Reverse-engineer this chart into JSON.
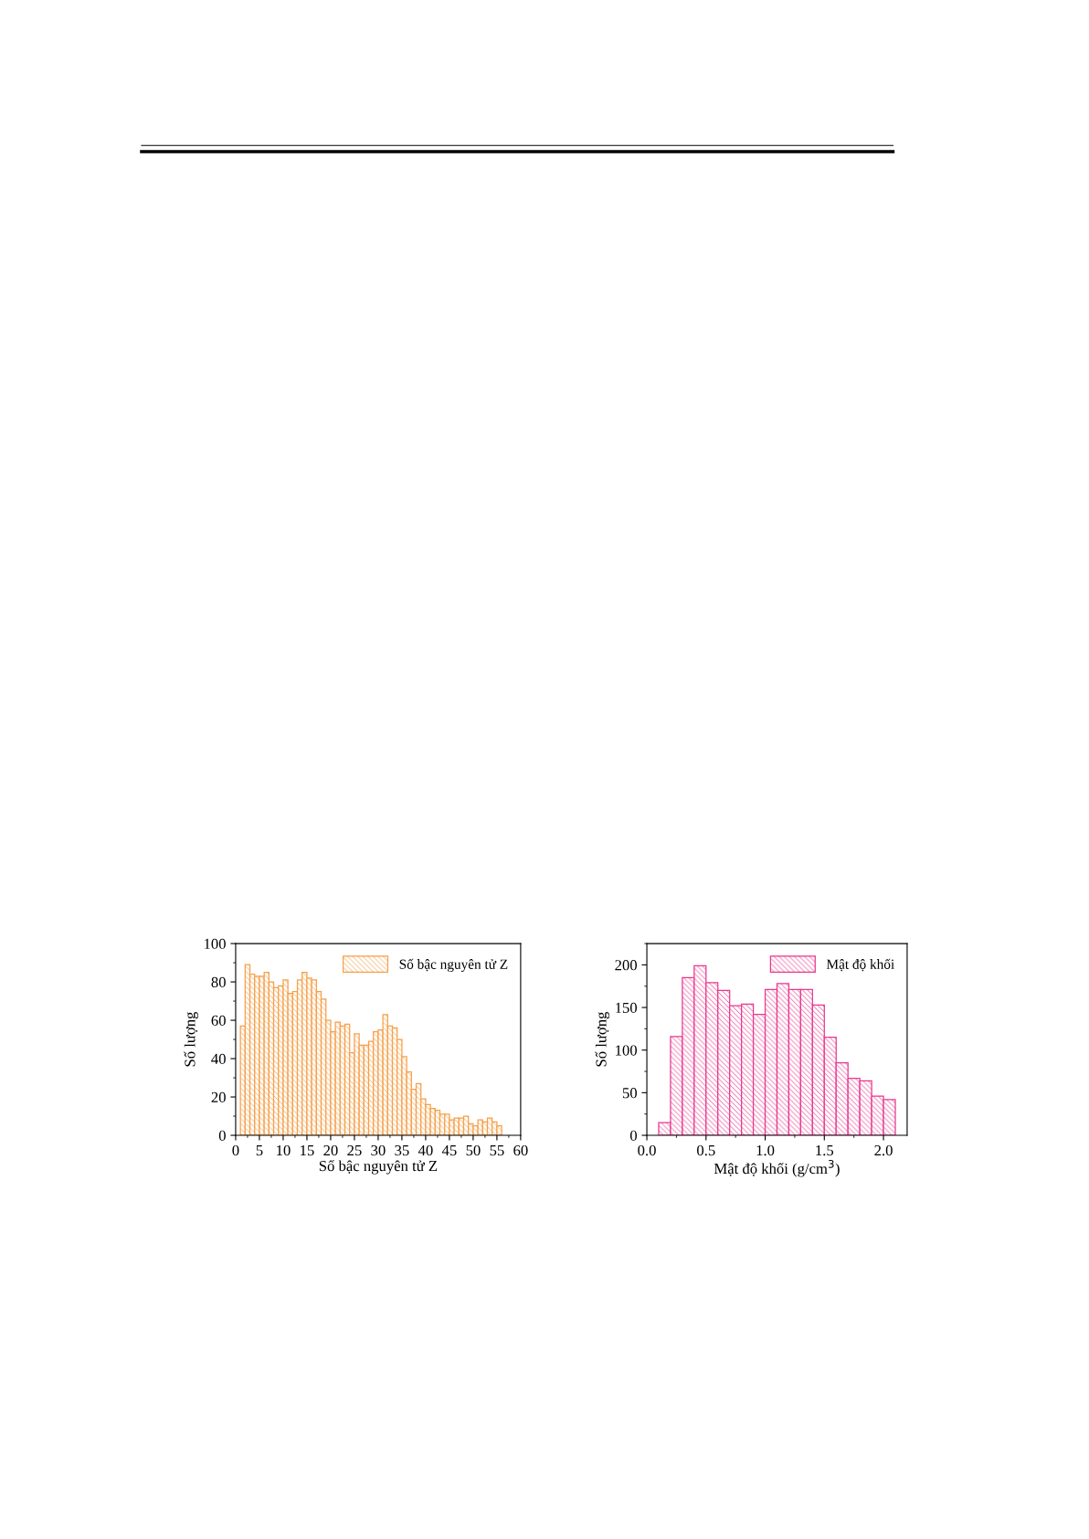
{
  "chart_data": [
    {
      "type": "histogram",
      "xlabel": "Số bậc nguyên tử Z",
      "ylabel": "Số lượng",
      "bins": [
        1,
        2,
        3,
        4,
        5,
        6,
        7,
        8,
        9,
        10,
        11,
        12,
        13,
        14,
        15,
        16,
        17,
        18,
        19,
        20,
        21,
        22,
        23,
        24,
        25,
        26,
        27,
        28,
        29,
        30,
        31,
        32,
        33,
        34,
        35,
        36,
        37,
        38,
        39,
        40,
        41,
        42,
        43,
        44,
        45,
        46,
        47,
        48,
        49,
        50,
        51,
        52,
        53,
        54,
        55,
        56
      ],
      "series": [
        {
          "name": "Số bậc nguyên tử Z",
          "color": "#f5a04a",
          "values": [
            57,
            89,
            84,
            83,
            83,
            85,
            80,
            77,
            78,
            81,
            74,
            75,
            81,
            85,
            82,
            81,
            75,
            71,
            60,
            54,
            59,
            57,
            58,
            43,
            53,
            47,
            47,
            49,
            54,
            55,
            63,
            57,
            56,
            50,
            41,
            33,
            24,
            27,
            19,
            16,
            14,
            13,
            11,
            11,
            8,
            9,
            9,
            10,
            6,
            5,
            8,
            7,
            9,
            7,
            5
          ]
        }
      ],
      "xlim": [
        0,
        60
      ],
      "xticks": [
        0,
        5,
        10,
        15,
        20,
        25,
        30,
        35,
        40,
        45,
        50,
        55,
        60
      ],
      "ylim": [
        0,
        100
      ],
      "yticks": [
        0,
        20,
        40,
        60,
        80,
        100
      ],
      "legend": "top right",
      "grid": false
    },
    {
      "type": "histogram",
      "xlabel": "Mật độ khối (g/cm$^{3}$)",
      "ylabel": "Số lượng",
      "bins": [
        0.1,
        0.2,
        0.3,
        0.4,
        0.5,
        0.6,
        0.7,
        0.8,
        0.9,
        1.0,
        1.1,
        1.2,
        1.3,
        1.4,
        1.5,
        1.6,
        1.7,
        1.8,
        1.9,
        2.0,
        2.1
      ],
      "series": [
        {
          "name": "Mật độ khối",
          "color": "#e8388f",
          "values": [
            15,
            116,
            185,
            199,
            179,
            170,
            152,
            154,
            142,
            171,
            178,
            171,
            171,
            153,
            115,
            85,
            67,
            64,
            46,
            42
          ]
        }
      ],
      "xlim": [
        0,
        2.2
      ],
      "xticks": [
        {
          "value": 0,
          "label": "0.0"
        },
        0.5,
        {
          "value": 1,
          "label": "1.0"
        },
        1.5,
        {
          "value": 2,
          "label": "2.0"
        }
      ],
      "ylim": [
        0,
        225
      ],
      "yticks": [
        0,
        50,
        100,
        150,
        200
      ],
      "legend": "top right",
      "grid": false
    }
  ]
}
